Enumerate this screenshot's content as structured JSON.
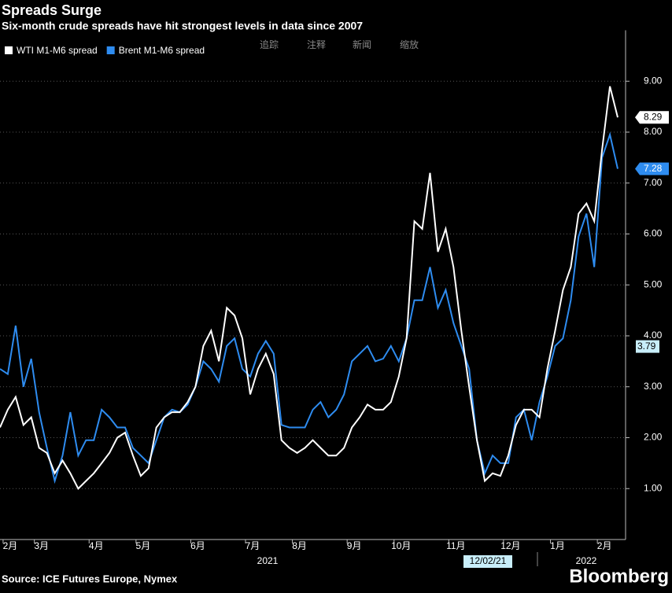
{
  "chart_data": {
    "type": "line",
    "title": "Spreads Surge",
    "subtitle": "Six-month crude spreads have hit strongest levels in data since 2007",
    "source": "Source: ICE Futures Europe, Nymex",
    "brand": "Bloomberg",
    "toolbar": [
      "追踪",
      "注释",
      "新闻",
      "缩放"
    ],
    "categories": [
      null,
      "2月",
      null,
      null,
      null,
      "3月",
      null,
      null,
      null,
      null,
      null,
      null,
      "4月",
      null,
      null,
      null,
      null,
      null,
      "5月",
      null,
      null,
      null,
      null,
      null,
      null,
      "6月",
      null,
      null,
      null,
      null,
      null,
      null,
      "7月",
      null,
      null,
      null,
      null,
      null,
      "8月",
      null,
      null,
      null,
      null,
      null,
      null,
      "9月",
      null,
      null,
      null,
      null,
      null,
      "10月",
      null,
      null,
      null,
      null,
      null,
      null,
      "11月",
      null,
      null,
      null,
      null,
      null,
      null,
      "12月",
      null,
      null,
      null,
      null,
      null,
      "1月",
      null,
      null,
      null,
      null,
      null,
      "2月",
      null,
      null
    ],
    "year_labels": [
      "2021",
      "2022"
    ],
    "crosshair_date": "12/02/21",
    "crosshair_value": 3.79,
    "series": [
      {
        "name": "WTI M1-M6 spread",
        "color": "#ffffff",
        "values": [
          2.2,
          2.55,
          2.8,
          2.25,
          2.4,
          1.8,
          1.7,
          1.3,
          1.55,
          1.3,
          1.0,
          1.15,
          1.3,
          1.5,
          1.7,
          2.0,
          2.1,
          1.65,
          1.25,
          1.4,
          2.2,
          2.4,
          2.5,
          2.5,
          2.7,
          3.0,
          3.8,
          4.1,
          3.5,
          4.55,
          4.4,
          3.95,
          2.85,
          3.35,
          3.65,
          3.25,
          1.95,
          1.8,
          1.7,
          1.8,
          1.95,
          1.8,
          1.65,
          1.65,
          1.8,
          2.2,
          2.4,
          2.65,
          2.55,
          2.55,
          2.7,
          3.2,
          3.95,
          6.25,
          6.1,
          7.2,
          5.65,
          6.1,
          5.35,
          4.1,
          3.0,
          1.95,
          1.15,
          1.3,
          1.25,
          1.65,
          2.25,
          2.55,
          2.55,
          2.4,
          3.35,
          4.1,
          4.9,
          5.35,
          6.4,
          6.6,
          6.25,
          7.65,
          8.9,
          8.29
        ]
      },
      {
        "name": "Brent M1-M6 spread",
        "color": "#2e8cf0",
        "values": [
          3.35,
          3.25,
          4.2,
          3.0,
          3.55,
          2.5,
          1.8,
          1.15,
          1.65,
          2.5,
          1.65,
          1.95,
          1.95,
          2.55,
          2.4,
          2.2,
          2.2,
          1.8,
          1.65,
          1.5,
          1.95,
          2.4,
          2.55,
          2.5,
          2.65,
          3.0,
          3.5,
          3.35,
          3.1,
          3.8,
          3.95,
          3.35,
          3.2,
          3.65,
          3.9,
          3.65,
          2.25,
          2.2,
          2.2,
          2.2,
          2.55,
          2.7,
          2.4,
          2.55,
          2.85,
          3.5,
          3.65,
          3.8,
          3.5,
          3.55,
          3.8,
          3.5,
          3.95,
          4.7,
          4.7,
          5.35,
          4.55,
          4.9,
          4.25,
          3.8,
          3.35,
          1.95,
          1.3,
          1.65,
          1.5,
          1.5,
          2.4,
          2.55,
          1.95,
          2.7,
          3.2,
          3.8,
          3.95,
          4.7,
          5.95,
          6.4,
          5.35,
          7.5,
          7.95,
          7.28
        ]
      }
    ],
    "ylim": [
      0,
      10
    ],
    "yticks": [
      {
        "value": 1,
        "label": "1.00"
      },
      {
        "value": 2,
        "label": "2.00"
      },
      {
        "value": 3,
        "label": "3.00"
      },
      {
        "value": 4,
        "label": "4.00"
      },
      {
        "value": 5,
        "label": "5.00"
      },
      {
        "value": 6,
        "label": "6.00"
      },
      {
        "value": 7,
        "label": "7.00"
      },
      {
        "value": 8,
        "label": "8.00"
      },
      {
        "value": 9,
        "label": "9.00"
      }
    ],
    "grid": true,
    "background": "#000000"
  }
}
